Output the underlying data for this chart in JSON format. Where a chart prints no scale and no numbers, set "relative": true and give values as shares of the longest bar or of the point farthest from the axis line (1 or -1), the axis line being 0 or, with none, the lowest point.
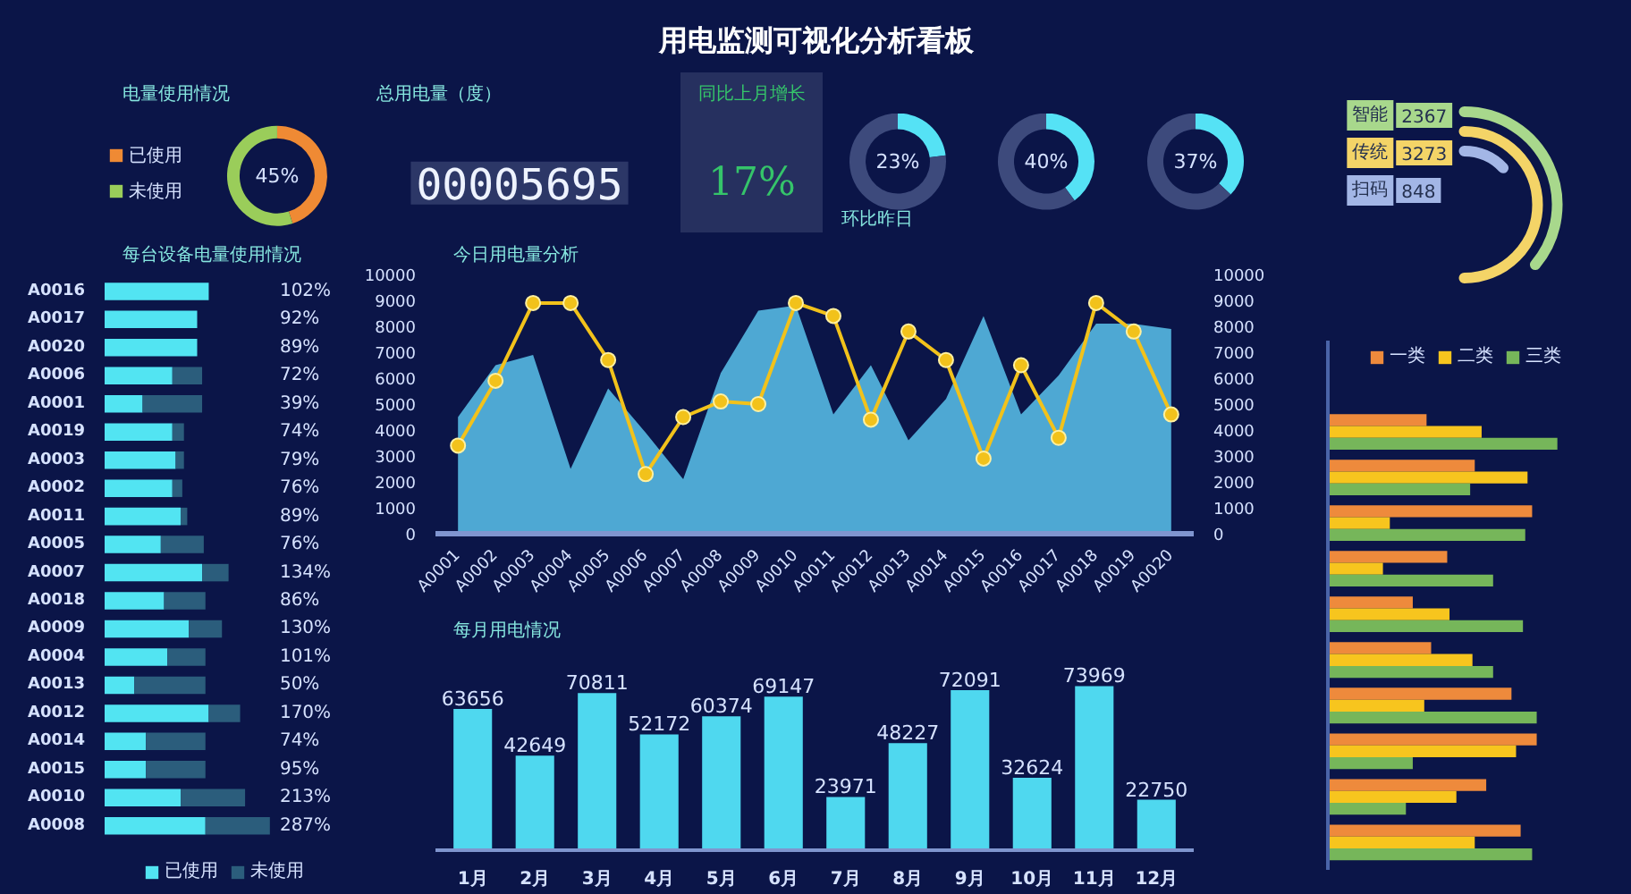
{
  "chart_data": [
    {
      "type": "other",
      "title": "用电监测可视化分析看板"
    },
    {
      "type": "donut",
      "title": "电量使用情况",
      "categories": [
        "已使用",
        "未使用"
      ],
      "values": [
        45,
        55
      ],
      "colors": [
        "#ef8a34",
        "#9acd5a"
      ],
      "value_labels": [
        "45%",
        null
      ],
      "legend": "left"
    },
    {
      "type": "other",
      "title": "总用电量（度）",
      "annotations": [
        "00005695"
      ]
    },
    {
      "type": "other",
      "title": "同比上月增长",
      "annotations": [
        "17%"
      ]
    },
    {
      "type": "donut",
      "categories": [
        null,
        null
      ],
      "values": [
        23,
        77
      ],
      "colors": [
        "#55e2f5",
        "#3d4a7c"
      ],
      "value_labels": [
        "23%",
        null
      ],
      "annotations": [
        "环比昨日"
      ]
    },
    {
      "type": "donut",
      "categories": [
        null,
        null
      ],
      "values": [
        40,
        60
      ],
      "colors": [
        "#55e2f5",
        "#3d4a7c"
      ],
      "value_labels": [
        "40%",
        null
      ]
    },
    {
      "type": "donut",
      "categories": [
        null,
        null
      ],
      "values": [
        37,
        63
      ],
      "colors": [
        "#55e2f5",
        "#3d4a7c"
      ],
      "value_labels": [
        "37%",
        null
      ]
    },
    {
      "type": "other",
      "categories": [
        "智能",
        "传统",
        "扫码"
      ],
      "values": [
        2367,
        3273,
        848
      ],
      "colors": [
        "#a8d88c",
        "#f4d467",
        "#a3b6e6"
      ],
      "data_labels": true
    },
    {
      "type": "bar",
      "title": "每台设备电量使用情况",
      "orientation": "horizontal",
      "stacked": true,
      "relative": true,
      "categories": [
        "A0016",
        "A0017",
        "A0020",
        "A0006",
        "A0001",
        "A0019",
        "A0003",
        "A0002",
        "A0011",
        "A0005",
        "A0007",
        "A0018",
        "A0009",
        "A0004",
        "A0013",
        "A0012",
        "A0014",
        "A0015",
        "A0010",
        "A0008"
      ],
      "series": [
        {
          "name": "已使用",
          "color": "#52e4f2",
          "values": [
            0.63,
            0.56,
            0.56,
            0.41,
            0.23,
            0.41,
            0.43,
            0.41,
            0.46,
            0.34,
            0.59,
            0.36,
            0.51,
            0.38,
            0.18,
            0.63,
            0.25,
            0.25,
            0.46,
            0.61
          ]
        },
        {
          "name": "未使用",
          "color": "#2b5d7c",
          "values": [
            null,
            null,
            null,
            0.18,
            0.36,
            0.07,
            0.05,
            0.06,
            0.04,
            0.26,
            0.16,
            0.25,
            0.2,
            0.23,
            0.43,
            0.19,
            0.36,
            0.36,
            0.39,
            0.39
          ]
        }
      ],
      "legend": "bottom",
      "annotations": [
        "102%",
        "92%",
        "89%",
        "72%",
        "39%",
        "74%",
        "79%",
        "76%",
        "89%",
        "76%",
        "134%",
        "86%",
        "130%",
        "101%",
        "50%",
        "170%",
        "74%",
        "95%",
        "213%",
        "287%"
      ]
    },
    {
      "type": "area",
      "title": "今日用电量分析",
      "categories": [
        "A0001",
        "A0002",
        "A0003",
        "A0004",
        "A0005",
        "A0006",
        "A0007",
        "A0008",
        "A0009",
        "A0010",
        "A0011",
        "A0012",
        "A0013",
        "A0014",
        "A0015",
        "A0016",
        "A0017",
        "A0018",
        "A0019",
        "A0020"
      ],
      "series": [
        {
          "color": "#58bde6",
          "values": [
            4500,
            6500,
            6900,
            2500,
            5600,
            3900,
            2100,
            6200,
            8600,
            8800,
            4600,
            6500,
            3600,
            5200,
            8400,
            4600,
            6100,
            8100,
            8100,
            7900
          ]
        },
        {
          "type": "line",
          "marker": "circle",
          "color": "#f2c21b",
          "values": [
            3400,
            5900,
            8900,
            8900,
            6700,
            2300,
            4500,
            5100,
            5000,
            8900,
            8400,
            4400,
            7800,
            6700,
            2900,
            6500,
            3700,
            8900,
            7800,
            4600
          ]
        }
      ],
      "ylim": [
        0,
        10000
      ],
      "yticks": [
        0,
        1000,
        2000,
        3000,
        4000,
        5000,
        6000,
        7000,
        8000,
        9000,
        10000
      ],
      "y2lim": [
        0,
        10000
      ],
      "y2ticks": [
        0,
        1000,
        2000,
        3000,
        4000,
        5000,
        6000,
        7000,
        8000,
        9000,
        10000
      ]
    },
    {
      "type": "bar",
      "title": "每月用电情况",
      "categories": [
        "1月",
        "2月",
        "3月",
        "4月",
        "5月",
        "6月",
        "7月",
        "8月",
        "9月",
        "10月",
        "11月",
        "12月"
      ],
      "values": [
        63656,
        42649,
        70811,
        52172,
        60374,
        69147,
        23971,
        48227,
        72091,
        32624,
        73969,
        22750
      ],
      "color": "#4fd8ef",
      "data_labels": true
    },
    {
      "type": "bar",
      "orientation": "horizontal",
      "relative": true,
      "categories": [
        null,
        null,
        null,
        null,
        null,
        null,
        null,
        null,
        null,
        null
      ],
      "series": [
        {
          "name": "一类",
          "color": "#ee8a3c",
          "values": [
            0.43,
            0.64,
            0.89,
            0.52,
            0.37,
            0.45,
            0.8,
            0.91,
            0.69,
            0.84
          ]
        },
        {
          "name": "二类",
          "color": "#f7c51e",
          "values": [
            0.67,
            0.87,
            0.27,
            0.24,
            0.53,
            0.63,
            0.42,
            0.82,
            0.56,
            0.64
          ]
        },
        {
          "name": "三类",
          "color": "#76b65a",
          "values": [
            1.0,
            0.62,
            0.86,
            0.72,
            0.85,
            0.72,
            0.91,
            0.37,
            0.34,
            0.89
          ]
        }
      ],
      "legend": "top"
    }
  ]
}
